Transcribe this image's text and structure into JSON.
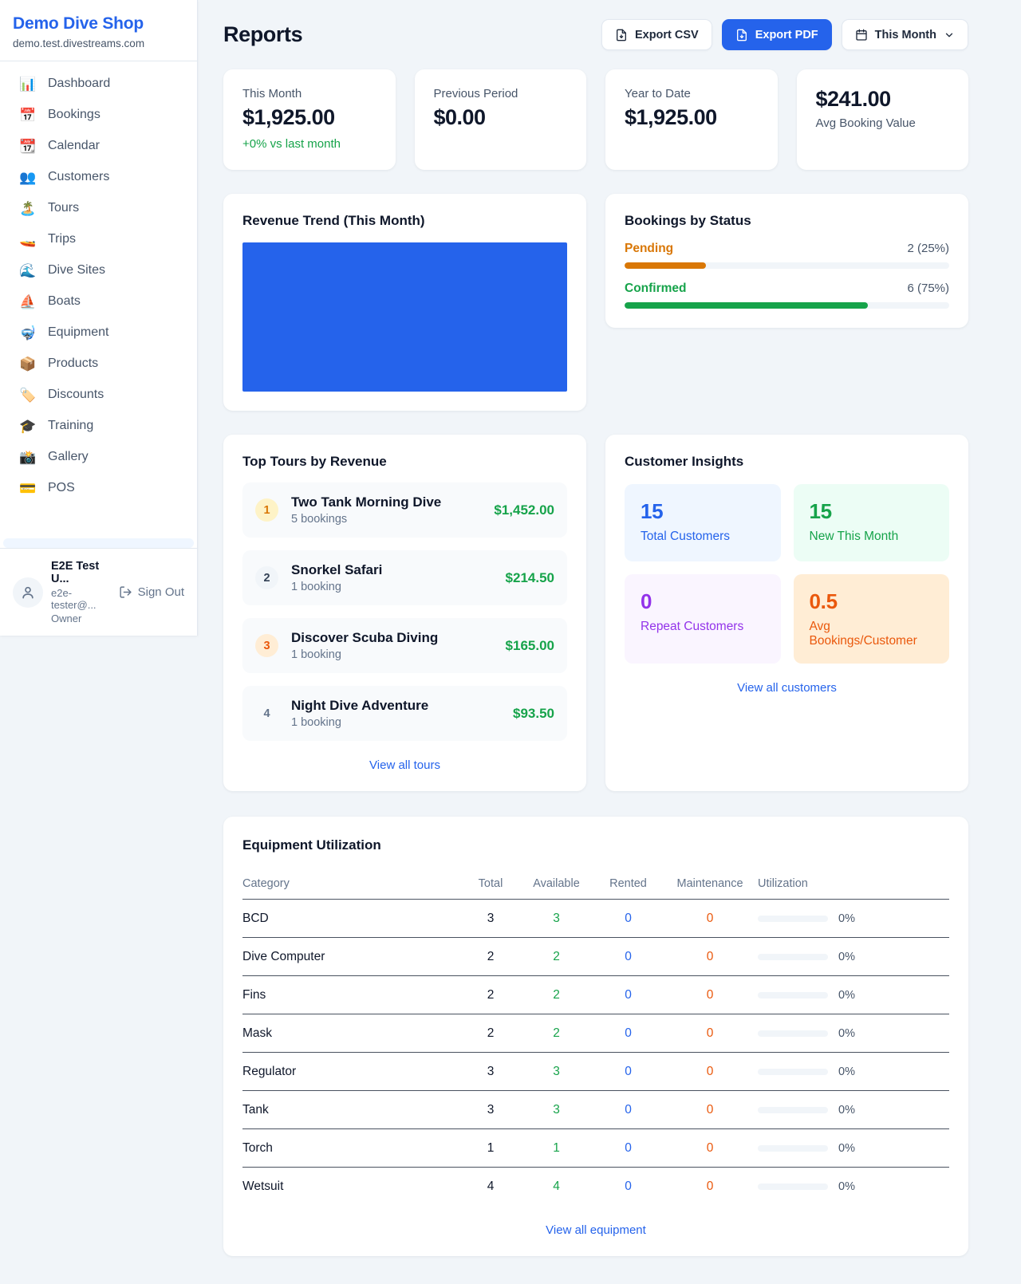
{
  "colors": {
    "accent": "#2563eb",
    "positive": "#16a34a",
    "warning": "#d97706"
  },
  "sidebar": {
    "brand": {
      "name": "Demo Dive Shop",
      "domain": "demo.test.divestreams.com"
    },
    "nav": [
      {
        "label": "Dashboard",
        "icon": "📊"
      },
      {
        "label": "Bookings",
        "icon": "📅"
      },
      {
        "label": "Calendar",
        "icon": "📆"
      },
      {
        "label": "Customers",
        "icon": "👥"
      },
      {
        "label": "Tours",
        "icon": "🏝️"
      },
      {
        "label": "Trips",
        "icon": "🚤"
      },
      {
        "label": "Dive Sites",
        "icon": "🌊"
      },
      {
        "label": "Boats",
        "icon": "⛵"
      },
      {
        "label": "Equipment",
        "icon": "🤿"
      },
      {
        "label": "Products",
        "icon": "📦"
      },
      {
        "label": "Discounts",
        "icon": "🏷️"
      },
      {
        "label": "Training",
        "icon": "🎓"
      },
      {
        "label": "Gallery",
        "icon": "📸"
      },
      {
        "label": "POS",
        "icon": "💳"
      }
    ],
    "user": {
      "name": "E2E Test U...",
      "email": "e2e-tester@...",
      "role": "Owner",
      "sign_out": "Sign Out"
    }
  },
  "header": {
    "title": "Reports",
    "export_csv": "Export CSV",
    "export_pdf": "Export PDF",
    "period": "This Month"
  },
  "stats": [
    {
      "label": "This Month",
      "value": "$1,925.00",
      "delta": "+0% vs last month"
    },
    {
      "label": "Previous Period",
      "value": "$0.00"
    },
    {
      "label": "Year to Date",
      "value": "$1,925.00"
    },
    {
      "label": "Avg Booking Value",
      "value": "$241.00",
      "value_first": true
    }
  ],
  "revenue_trend": {
    "title": "Revenue Trend (This Month)",
    "bar_color": "#2563eb",
    "chart_data": {
      "type": "bar",
      "categories": [
        "This Month"
      ],
      "values": [
        1925
      ],
      "title": "Revenue Trend (This Month)",
      "note": "single full-width bar, no axes shown"
    }
  },
  "bookings_by_status": {
    "title": "Bookings by Status",
    "items": [
      {
        "label": "Pending",
        "count": "2 (25%)",
        "pct": 25,
        "color": "#d97706"
      },
      {
        "label": "Confirmed",
        "count": "6 (75%)",
        "pct": 75,
        "color": "#16a34a"
      }
    ]
  },
  "top_tours": {
    "title": "Top Tours by Revenue",
    "items": [
      {
        "rank": "1",
        "name": "Two Tank Morning Dive",
        "bookings": "5 bookings",
        "revenue": "$1,452.00"
      },
      {
        "rank": "2",
        "name": "Snorkel Safari",
        "bookings": "1 booking",
        "revenue": "$214.50"
      },
      {
        "rank": "3",
        "name": "Discover Scuba Diving",
        "bookings": "1 booking",
        "revenue": "$165.00"
      },
      {
        "rank": "4",
        "name": "Night Dive Adventure",
        "bookings": "1 booking",
        "revenue": "$93.50"
      }
    ],
    "view_all": "View all tours"
  },
  "customer_insights": {
    "title": "Customer Insights",
    "cards": [
      {
        "value": "15",
        "label": "Total Customers",
        "bg": "#eff6ff",
        "fg": "#2563eb"
      },
      {
        "value": "15",
        "label": "New This Month",
        "bg": "#ecfdf5",
        "fg": "#16a34a"
      },
      {
        "value": "0",
        "label": "Repeat Customers",
        "bg": "#faf5ff",
        "fg": "#9333ea"
      },
      {
        "value": "0.5",
        "label": "Avg Bookings/Customer",
        "bg": "#ffedd5",
        "fg": "#ea580c"
      }
    ],
    "view_all": "View all customers"
  },
  "equipment": {
    "title": "Equipment Utilization",
    "columns": [
      "Category",
      "Total",
      "Available",
      "Rented",
      "Maintenance",
      "Utilization"
    ],
    "rows": [
      {
        "category": "BCD",
        "total": "3",
        "available": "3",
        "rented": "0",
        "maintenance": "0",
        "utilization": "0%"
      },
      {
        "category": "Dive Computer",
        "total": "2",
        "available": "2",
        "rented": "0",
        "maintenance": "0",
        "utilization": "0%"
      },
      {
        "category": "Fins",
        "total": "2",
        "available": "2",
        "rented": "0",
        "maintenance": "0",
        "utilization": "0%"
      },
      {
        "category": "Mask",
        "total": "2",
        "available": "2",
        "rented": "0",
        "maintenance": "0",
        "utilization": "0%"
      },
      {
        "category": "Regulator",
        "total": "3",
        "available": "3",
        "rented": "0",
        "maintenance": "0",
        "utilization": "0%"
      },
      {
        "category": "Tank",
        "total": "3",
        "available": "3",
        "rented": "0",
        "maintenance": "0",
        "utilization": "0%"
      },
      {
        "category": "Torch",
        "total": "1",
        "available": "1",
        "rented": "0",
        "maintenance": "0",
        "utilization": "0%"
      },
      {
        "category": "Wetsuit",
        "total": "4",
        "available": "4",
        "rented": "0",
        "maintenance": "0",
        "utilization": "0%"
      }
    ],
    "view_all": "View all equipment"
  }
}
